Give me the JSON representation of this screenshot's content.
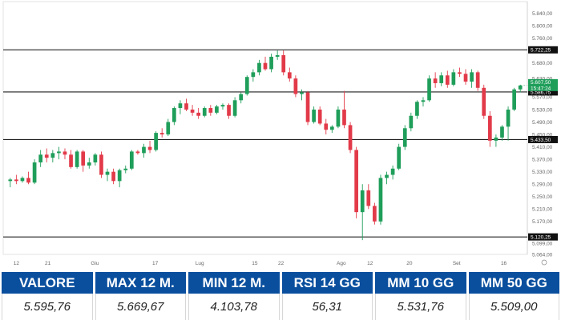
{
  "chart_data": {
    "type": "candlestick",
    "ylim": [
      5064,
      5862
    ],
    "x_ticks": [
      "12",
      "21",
      "Giu",
      "17",
      "Lug",
      "15",
      "22",
      "Ago",
      "12",
      "20",
      "Set",
      "16"
    ],
    "y_ticks": [
      "5.840,00",
      "5.800,00",
      "5.760,00",
      "5.680,00",
      "5.630,00",
      "5.570,00",
      "5.530,00",
      "5.490,00",
      "5.450,00",
      "5.410,00",
      "5.370,00",
      "5.330,00",
      "5.290,00",
      "5.250,00",
      "5.210,00",
      "5.170,00",
      "5.099,00",
      "5.064,00"
    ],
    "levels": [
      {
        "label": "5.722,25",
        "value": 5722.25
      },
      {
        "label": "5.586,75",
        "value": 5586.75
      },
      {
        "label": "5.433,50",
        "value": 5433.5
      },
      {
        "label": "5.120,25",
        "value": 5120.25
      }
    ],
    "current": {
      "label": "5.607,50",
      "sublabel": "15:47:24",
      "value": 5607.5
    },
    "colors": {
      "up": "#1f9e5a",
      "down": "#e23a49",
      "level_line": "#222222",
      "current": "#1f9e5a"
    },
    "candles": [
      {
        "o": 5300,
        "h": 5310,
        "l": 5280,
        "c": 5305
      },
      {
        "o": 5305,
        "h": 5320,
        "l": 5290,
        "c": 5300
      },
      {
        "o": 5300,
        "h": 5315,
        "l": 5295,
        "c": 5310
      },
      {
        "o": 5310,
        "h": 5330,
        "l": 5290,
        "c": 5295
      },
      {
        "o": 5295,
        "h": 5370,
        "l": 5290,
        "c": 5360
      },
      {
        "o": 5360,
        "h": 5400,
        "l": 5345,
        "c": 5385
      },
      {
        "o": 5385,
        "h": 5405,
        "l": 5360,
        "c": 5375
      },
      {
        "o": 5375,
        "h": 5400,
        "l": 5360,
        "c": 5390
      },
      {
        "o": 5390,
        "h": 5410,
        "l": 5370,
        "c": 5395
      },
      {
        "o": 5395,
        "h": 5405,
        "l": 5370,
        "c": 5385
      },
      {
        "o": 5385,
        "h": 5400,
        "l": 5340,
        "c": 5345
      },
      {
        "o": 5345,
        "h": 5400,
        "l": 5340,
        "c": 5395
      },
      {
        "o": 5395,
        "h": 5400,
        "l": 5330,
        "c": 5350
      },
      {
        "o": 5350,
        "h": 5375,
        "l": 5340,
        "c": 5360
      },
      {
        "o": 5360,
        "h": 5390,
        "l": 5350,
        "c": 5385
      },
      {
        "o": 5385,
        "h": 5395,
        "l": 5310,
        "c": 5320
      },
      {
        "o": 5320,
        "h": 5340,
        "l": 5300,
        "c": 5330
      },
      {
        "o": 5330,
        "h": 5340,
        "l": 5290,
        "c": 5300
      },
      {
        "o": 5300,
        "h": 5340,
        "l": 5280,
        "c": 5335
      },
      {
        "o": 5335,
        "h": 5350,
        "l": 5325,
        "c": 5340
      },
      {
        "o": 5340,
        "h": 5400,
        "l": 5335,
        "c": 5395
      },
      {
        "o": 5395,
        "h": 5400,
        "l": 5385,
        "c": 5390
      },
      {
        "o": 5390,
        "h": 5420,
        "l": 5375,
        "c": 5410
      },
      {
        "o": 5410,
        "h": 5430,
        "l": 5390,
        "c": 5400
      },
      {
        "o": 5400,
        "h": 5460,
        "l": 5395,
        "c": 5455
      },
      {
        "o": 5455,
        "h": 5470,
        "l": 5440,
        "c": 5450
      },
      {
        "o": 5450,
        "h": 5500,
        "l": 5445,
        "c": 5490
      },
      {
        "o": 5490,
        "h": 5540,
        "l": 5480,
        "c": 5535
      },
      {
        "o": 5535,
        "h": 5560,
        "l": 5515,
        "c": 5550
      },
      {
        "o": 5550,
        "h": 5565,
        "l": 5525,
        "c": 5530
      },
      {
        "o": 5530,
        "h": 5545,
        "l": 5510,
        "c": 5520
      },
      {
        "o": 5520,
        "h": 5535,
        "l": 5500,
        "c": 5510
      },
      {
        "o": 5510,
        "h": 5540,
        "l": 5505,
        "c": 5535
      },
      {
        "o": 5535,
        "h": 5545,
        "l": 5510,
        "c": 5520
      },
      {
        "o": 5520,
        "h": 5545,
        "l": 5515,
        "c": 5540
      },
      {
        "o": 5540,
        "h": 5550,
        "l": 5530,
        "c": 5545
      },
      {
        "o": 5545,
        "h": 5550,
        "l": 5500,
        "c": 5510
      },
      {
        "o": 5510,
        "h": 5570,
        "l": 5505,
        "c": 5560
      },
      {
        "o": 5560,
        "h": 5585,
        "l": 5550,
        "c": 5580
      },
      {
        "o": 5580,
        "h": 5640,
        "l": 5575,
        "c": 5635
      },
      {
        "o": 5635,
        "h": 5660,
        "l": 5620,
        "c": 5650
      },
      {
        "o": 5650,
        "h": 5690,
        "l": 5640,
        "c": 5680
      },
      {
        "o": 5680,
        "h": 5700,
        "l": 5655,
        "c": 5660
      },
      {
        "o": 5660,
        "h": 5710,
        "l": 5650,
        "c": 5700
      },
      {
        "o": 5700,
        "h": 5720,
        "l": 5690,
        "c": 5705
      },
      {
        "o": 5705,
        "h": 5720,
        "l": 5640,
        "c": 5650
      },
      {
        "o": 5650,
        "h": 5665,
        "l": 5620,
        "c": 5630
      },
      {
        "o": 5630,
        "h": 5640,
        "l": 5570,
        "c": 5580
      },
      {
        "o": 5580,
        "h": 5595,
        "l": 5560,
        "c": 5585
      },
      {
        "o": 5585,
        "h": 5590,
        "l": 5480,
        "c": 5490
      },
      {
        "o": 5490,
        "h": 5540,
        "l": 5485,
        "c": 5530
      },
      {
        "o": 5530,
        "h": 5540,
        "l": 5480,
        "c": 5485
      },
      {
        "o": 5485,
        "h": 5500,
        "l": 5450,
        "c": 5465
      },
      {
        "o": 5465,
        "h": 5480,
        "l": 5455,
        "c": 5475
      },
      {
        "o": 5475,
        "h": 5540,
        "l": 5470,
        "c": 5530
      },
      {
        "o": 5530,
        "h": 5590,
        "l": 5470,
        "c": 5480
      },
      {
        "o": 5480,
        "h": 5490,
        "l": 5390,
        "c": 5400
      },
      {
        "o": 5400,
        "h": 5410,
        "l": 5180,
        "c": 5200
      },
      {
        "o": 5200,
        "h": 5290,
        "l": 5110,
        "c": 5270
      },
      {
        "o": 5270,
        "h": 5290,
        "l": 5210,
        "c": 5220
      },
      {
        "o": 5220,
        "h": 5230,
        "l": 5160,
        "c": 5170
      },
      {
        "o": 5170,
        "h": 5320,
        "l": 5160,
        "c": 5310
      },
      {
        "o": 5310,
        "h": 5330,
        "l": 5290,
        "c": 5320
      },
      {
        "o": 5320,
        "h": 5350,
        "l": 5305,
        "c": 5340
      },
      {
        "o": 5340,
        "h": 5420,
        "l": 5335,
        "c": 5410
      },
      {
        "o": 5410,
        "h": 5480,
        "l": 5400,
        "c": 5470
      },
      {
        "o": 5470,
        "h": 5520,
        "l": 5460,
        "c": 5510
      },
      {
        "o": 5510,
        "h": 5560,
        "l": 5500,
        "c": 5555
      },
      {
        "o": 5555,
        "h": 5570,
        "l": 5540,
        "c": 5560
      },
      {
        "o": 5560,
        "h": 5640,
        "l": 5555,
        "c": 5630
      },
      {
        "o": 5630,
        "h": 5650,
        "l": 5600,
        "c": 5615
      },
      {
        "o": 5615,
        "h": 5650,
        "l": 5605,
        "c": 5640
      },
      {
        "o": 5640,
        "h": 5655,
        "l": 5600,
        "c": 5610
      },
      {
        "o": 5610,
        "h": 5660,
        "l": 5605,
        "c": 5650
      },
      {
        "o": 5650,
        "h": 5665,
        "l": 5635,
        "c": 5645
      },
      {
        "o": 5645,
        "h": 5660,
        "l": 5610,
        "c": 5620
      },
      {
        "o": 5620,
        "h": 5660,
        "l": 5600,
        "c": 5650
      },
      {
        "o": 5650,
        "h": 5655,
        "l": 5590,
        "c": 5600
      },
      {
        "o": 5600,
        "h": 5610,
        "l": 5500,
        "c": 5510
      },
      {
        "o": 5510,
        "h": 5525,
        "l": 5410,
        "c": 5430
      },
      {
        "o": 5430,
        "h": 5450,
        "l": 5410,
        "c": 5440
      },
      {
        "o": 5440,
        "h": 5480,
        "l": 5430,
        "c": 5475
      },
      {
        "o": 5475,
        "h": 5540,
        "l": 5430,
        "c": 5530
      },
      {
        "o": 5530,
        "h": 5600,
        "l": 5525,
        "c": 5595
      },
      {
        "o": 5595,
        "h": 5610,
        "l": 5585,
        "c": 5607.5
      }
    ]
  },
  "stats": [
    {
      "label": "VALORE",
      "value": "5.595,76"
    },
    {
      "label": "MAX 12 M.",
      "value": "5.669,67"
    },
    {
      "label": "MIN 12 M.",
      "value": "4.103,78"
    },
    {
      "label": "RSI 14 GG",
      "value": "56,31"
    },
    {
      "label": "MM 10 GG",
      "value": "5.531,76"
    },
    {
      "label": "MM 50 GG",
      "value": "5.509,00"
    }
  ]
}
